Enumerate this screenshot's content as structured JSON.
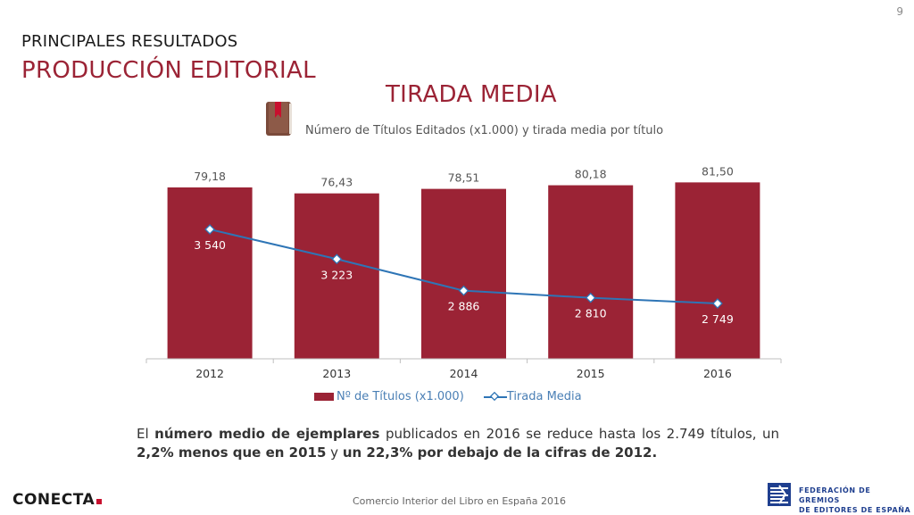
{
  "page_number": "9",
  "header": {
    "section": "PRINCIPALES RESULTADOS",
    "title": "PRODUCCIÓN EDITORIAL"
  },
  "chart_data": {
    "type": "bar",
    "title": "TIRADA MEDIA",
    "subtitle": "Número de Títulos Editados (x1.000) y tirada media por título",
    "categories": [
      "2012",
      "2013",
      "2014",
      "2015",
      "2016"
    ],
    "series": [
      {
        "name": "Nº de Títulos (x1.000)",
        "type": "bar",
        "color": "#9b2335",
        "values": [
          79.18,
          76.43,
          78.51,
          80.18,
          81.5
        ],
        "labels": [
          "79,18",
          "76,43",
          "78,51",
          "80,18",
          "81,50"
        ]
      },
      {
        "name": "Tirada Media",
        "type": "line",
        "color": "#2e75b6",
        "values": [
          3540,
          3223,
          2886,
          2810,
          2749
        ],
        "labels": [
          "3 540",
          "3 223",
          "2 886",
          "2 810",
          "2 749"
        ]
      }
    ],
    "legend_position": "bottom",
    "grid": false
  },
  "summary": {
    "p1": "El ",
    "b1": "número medio de ejemplares",
    "p2": " publicados en 2016 se reduce hasta los 2.749 títulos, un ",
    "b2": "2,2% menos que en 2015",
    "p3": " y ",
    "b3": "un 22,3% por debajo de la cifras de 2012."
  },
  "footer": {
    "logo": "CONECTA",
    "source": "Comercio Interior del Libro en España 2016",
    "federation_line1": "FEDERACIÓN DE GREMIOS",
    "federation_line2": "DE EDITORES DE ESPAÑA"
  },
  "icons": {
    "book": "book-icon",
    "federation": "federation-emblem-icon"
  }
}
